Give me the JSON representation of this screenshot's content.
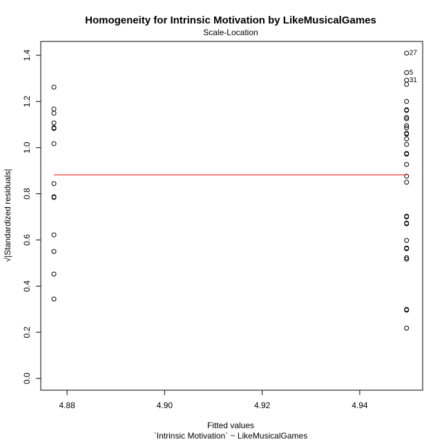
{
  "chart_data": {
    "type": "scatter",
    "title": "Homogeneity for Intrinsic Motivation by LikeMusicalGames",
    "subtitle": "Scale-Location",
    "x_label": "Fitted values",
    "x_label_2": "`Intrinsic Motivation` ~ LikeMusicalGames",
    "y_label": "√|Standardized residuals|",
    "xlim": [
      4.8746,
      4.9529
    ],
    "ylim": [
      -0.051,
      1.46
    ],
    "xticks": [
      4.88,
      {
        "value": 4.9,
        "label": "4.90"
      },
      4.92,
      4.94
    ],
    "yticks": [
      {
        "value": 0,
        "label": "0.0"
      },
      0.2,
      0.4,
      0.6,
      0.8,
      {
        "value": 1,
        "label": "1.0"
      },
      1.2,
      1.4
    ],
    "series": [
      {
        "color": "#000000",
        "x": [
          4.8773,
          4.8773,
          4.8773,
          4.8773,
          4.8773,
          4.8773,
          4.8773,
          4.8773,
          4.8773,
          4.8773,
          4.8773,
          4.8773,
          4.8773,
          4.8773,
          4.9496,
          4.9496,
          4.9496,
          4.9496,
          4.9496,
          4.9496,
          4.9496,
          4.9496,
          4.9496,
          4.9496,
          4.9496,
          4.9496,
          4.9496,
          4.9496,
          4.9496,
          4.9496,
          4.9496,
          4.9496,
          4.9496,
          4.9496,
          4.9496,
          4.9496,
          4.9496,
          4.9496,
          4.9496,
          4.9496,
          4.9496,
          4.9496,
          4.9496,
          4.9496,
          4.9496,
          4.9496
        ],
        "values": [
          1.262,
          1.167,
          1.149,
          1.107,
          1.086,
          1.083,
          1.017,
          0.844,
          0.787,
          0.784,
          0.622,
          0.55,
          0.452,
          0.344,
          1.409,
          1.325,
          1.292,
          1.274,
          1.2,
          1.164,
          1.161,
          1.131,
          1.125,
          1.095,
          1.086,
          1.062,
          1.059,
          1.038,
          1.014,
          0.975,
          0.972,
          0.927,
          0.876,
          0.85,
          0.703,
          0.7,
          0.673,
          0.67,
          0.598,
          0.565,
          0.562,
          0.523,
          0.517,
          0.299,
          0.296,
          0.218
        ]
      },
      {
        "type": "line",
        "color": "#ff0000",
        "x": [
          4.8773,
          4.9496
        ],
        "values": [
          0.882,
          0.882
        ]
      }
    ],
    "annotations": [
      {
        "text": "27",
        "x": 4.9496,
        "y": 1.409
      },
      {
        "text": "5",
        "x": 4.9496,
        "y": 1.325
      },
      {
        "text": "31",
        "x": 4.9496,
        "y": 1.292
      }
    ]
  }
}
